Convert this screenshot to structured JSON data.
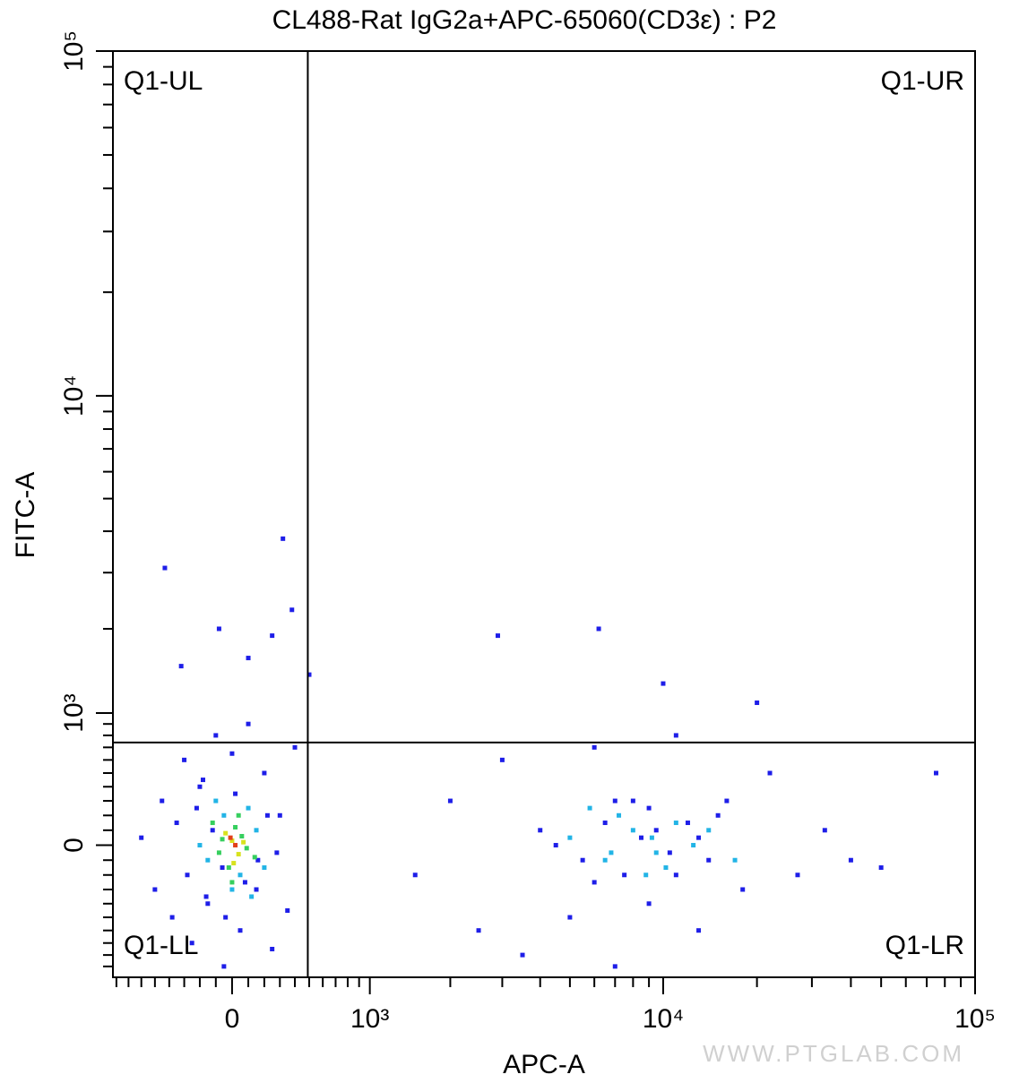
{
  "chart_data": {
    "type": "scatter",
    "title": "CL488-Rat IgG2a+APC-65060(CD3ε) : P2",
    "xlabel": "APC-A",
    "ylabel": "FITC-A",
    "xscale": "biexponential",
    "yscale": "biexponential",
    "xlim": [
      -830,
      100000
    ],
    "ylim": [
      -1000,
      100000
    ],
    "xticks": [
      0,
      {
        "value": 1000,
        "label": "10³"
      },
      {
        "value": 10000,
        "label": "10⁴"
      },
      {
        "value": 100000,
        "label": "10⁵"
      }
    ],
    "yticks": [
      0,
      {
        "value": 1000,
        "label": "10³"
      },
      {
        "value": 10000,
        "label": "10⁴"
      },
      {
        "value": 100000,
        "label": "10⁵"
      }
    ],
    "xminor_ticks": [
      -800,
      -700,
      -600,
      -500,
      -400,
      -300,
      -200,
      -100,
      100,
      200,
      300,
      400,
      500,
      600,
      700,
      800,
      900,
      2000,
      3000,
      4000,
      5000,
      6000,
      7000,
      8000,
      9000,
      20000,
      30000,
      40000,
      50000,
      60000,
      70000,
      80000,
      90000
    ],
    "yminor_ticks": [
      -900,
      -800,
      -700,
      -600,
      -500,
      -400,
      -300,
      -200,
      -100,
      100,
      200,
      300,
      400,
      500,
      600,
      700,
      800,
      900,
      2000,
      3000,
      4000,
      5000,
      6000,
      7000,
      8000,
      9000,
      20000,
      30000,
      40000,
      50000,
      60000,
      70000,
      80000,
      90000
    ],
    "quadrant_gate": {
      "x": 490,
      "y": 740
    },
    "quadrant_labels": [
      "Q1-UL",
      "Q1-UR",
      "Q1-LL",
      "Q1-LR"
    ],
    "series": [
      {
        "color": "#1e1ee8",
        "x": [
          -600,
          -500,
          -450,
          -380,
          -350,
          -300,
          -250,
          -200,
          -150,
          -100,
          -50,
          0,
          50,
          100,
          150,
          200,
          250,
          300,
          350,
          400,
          -320,
          -80,
          100,
          250,
          380,
          320,
          -430,
          500,
          1500,
          2000,
          2500,
          3000,
          3500,
          5000,
          7000,
          9000,
          13000,
          18000,
          27000,
          40000,
          4000,
          6000,
          8000,
          11000,
          15000,
          22000,
          33000,
          50000,
          75000,
          2900,
          6200,
          10000,
          20000,
          16000,
          4500,
          5500,
          6500,
          7500,
          8500,
          9500,
          10500,
          12000,
          14000,
          6000,
          9000,
          11000,
          13000,
          7000,
          -280,
          -220,
          -160,
          -120,
          -60,
          20,
          80,
          160,
          220,
          280,
          -40,
          -180
        ],
        "y": [
          50,
          -300,
          300,
          -500,
          150,
          600,
          -700,
          400,
          -400,
          800,
          -900,
          650,
          -600,
          900,
          -300,
          500,
          -750,
          200,
          -450,
          700,
          1500,
          2000,
          1600,
          1900,
          2300,
          3800,
          3100,
          1400,
          -200,
          300,
          -600,
          600,
          -800,
          -500,
          -900,
          -400,
          -600,
          -300,
          -200,
          -100,
          100,
          700,
          300,
          800,
          200,
          500,
          100,
          -150,
          500,
          1900,
          2000,
          1300,
          1100,
          300,
          0,
          -100,
          150,
          -200,
          50,
          100,
          -50,
          150,
          -100,
          -250,
          250,
          -200,
          50,
          300,
          -200,
          250,
          -350,
          100,
          -150,
          350,
          -250,
          -100,
          200,
          -50,
          -500,
          450
        ]
      },
      {
        "color": "#22b4e6",
        "x": [
          -150,
          -50,
          50,
          150,
          -100,
          0,
          100,
          200,
          -200,
          120,
          5000,
          6500,
          8000,
          9500,
          11000,
          12500,
          7200,
          8800,
          10200,
          5800,
          14000,
          6800,
          9200,
          17000
        ],
        "y": [
          -100,
          200,
          -200,
          100,
          300,
          -300,
          250,
          -150,
          0,
          -350,
          50,
          -100,
          100,
          -50,
          150,
          0,
          200,
          -200,
          -150,
          250,
          100,
          -50,
          50,
          -100
        ]
      },
      {
        "color": "#36cf5e",
        "x": [
          -80,
          20,
          90,
          -20,
          60,
          -120,
          140,
          0,
          40,
          -60
        ],
        "y": [
          -50,
          120,
          -20,
          -150,
          60,
          150,
          -80,
          -250,
          200,
          40
        ]
      },
      {
        "color": "#d8e21e",
        "x": [
          0,
          40,
          -40,
          70,
          10
        ],
        "y": [
          30,
          -60,
          80,
          20,
          -120
        ]
      },
      {
        "color": "#e2401a",
        "x": [
          20,
          -10
        ],
        "y": [
          0,
          50
        ]
      }
    ]
  },
  "watermark": "WWW.PTGLAB.COM"
}
